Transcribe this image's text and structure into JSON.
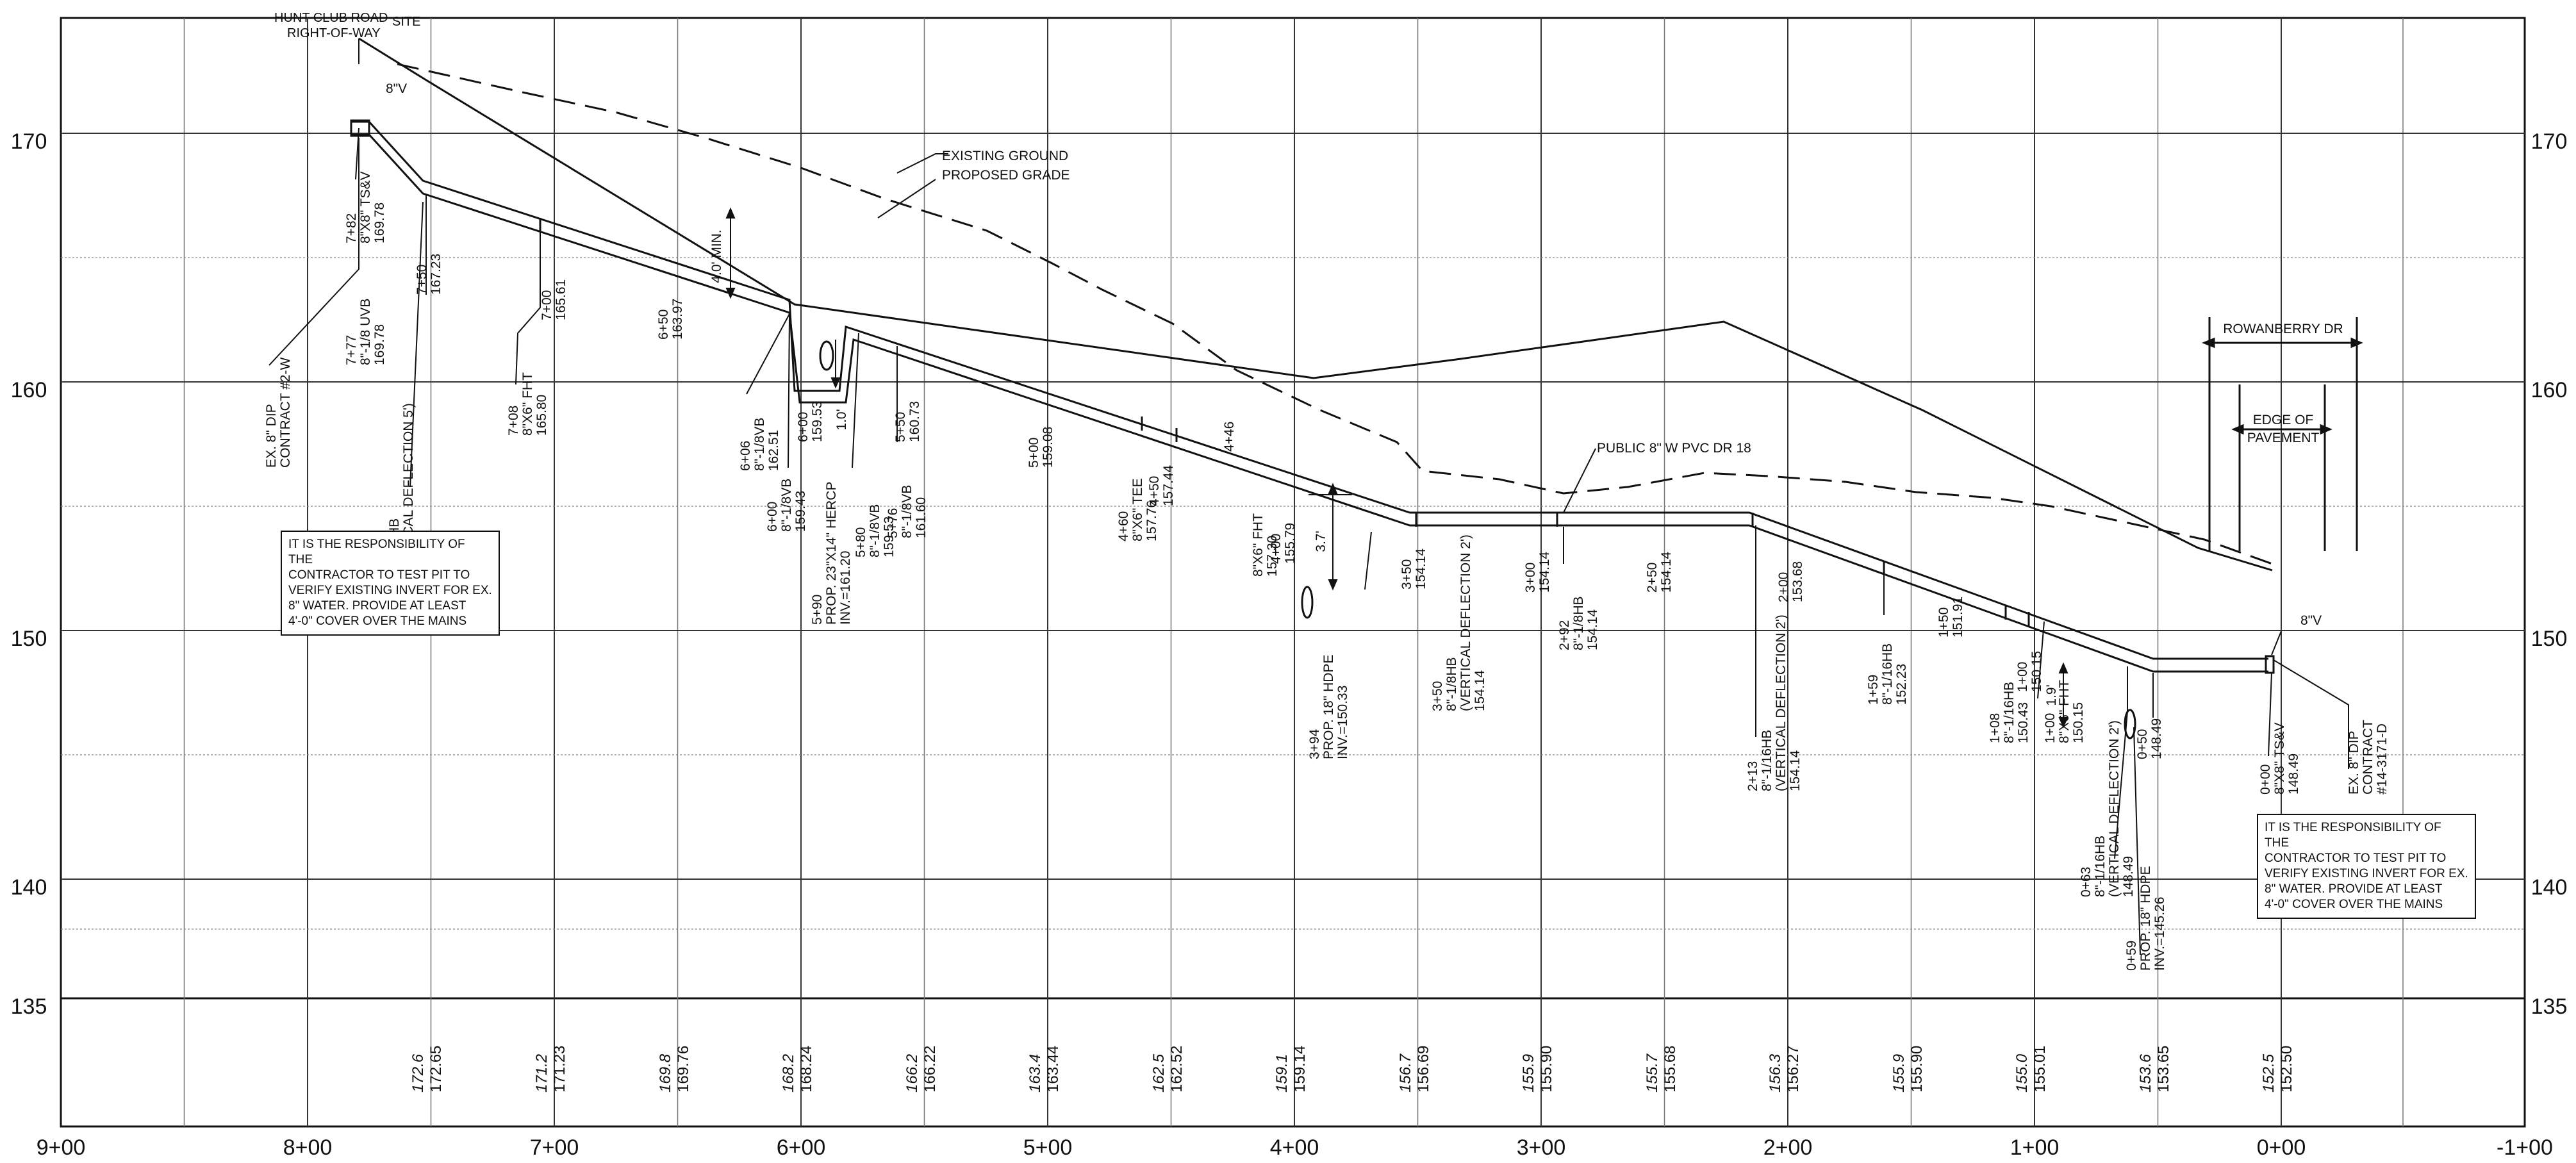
{
  "title_labels": {
    "hunt_club_1": "HUNT CLUB ROAD",
    "hunt_club_2": "RIGHT-OF-WAY",
    "site": "SITE",
    "existing_ground": "EXISTING GROUND",
    "proposed_grade": "PROPOSED GRADE",
    "public_pvc": "PUBLIC 8\" W PVC DR 18",
    "rowanberry": "ROWANBERRY DR",
    "edge_1": "EDGE OF",
    "edge_2": "PAVEMENT",
    "valve_left": "8\"V",
    "valve_right": "8\"V",
    "min_cover": "4.0' MIN.",
    "dim_37": "3.7'",
    "dim_10": "1.0'",
    "dim_19": "1.9'"
  },
  "elevation_axis": {
    "left_labels": [
      "170",
      "160",
      "150",
      "140",
      "135"
    ],
    "right_labels": [
      "170",
      "160",
      "150",
      "140",
      "135"
    ]
  },
  "station_axis": {
    "labels": [
      "9+00",
      "8+00",
      "7+00",
      "6+00",
      "5+00",
      "4+00",
      "3+00",
      "2+00",
      "1+00",
      "0+00",
      "-1+00"
    ]
  },
  "bottom_elevations": [
    {
      "existing": "172.6",
      "proposed": "172.65"
    },
    {
      "existing": "171.2",
      "proposed": "171.23"
    },
    {
      "existing": "169.8",
      "proposed": "169.76"
    },
    {
      "existing": "168.2",
      "proposed": "168.24"
    },
    {
      "existing": "166.2",
      "proposed": "166.22"
    },
    {
      "existing": "163.4",
      "proposed": "163.44"
    },
    {
      "existing": "162.5",
      "proposed": "162.52"
    },
    {
      "existing": "159.1",
      "proposed": "159.14"
    },
    {
      "existing": "156.7",
      "proposed": "156.69"
    },
    {
      "existing": "155.9",
      "proposed": "155.90"
    },
    {
      "existing": "155.7",
      "proposed": "155.68"
    },
    {
      "existing": "156.3",
      "proposed": "156.27"
    },
    {
      "existing": "155.9",
      "proposed": "155.90"
    },
    {
      "existing": "155.0",
      "proposed": "155.01"
    },
    {
      "existing": "153.6",
      "proposed": "153.65"
    },
    {
      "existing": "152.5",
      "proposed": "152.50"
    }
  ],
  "pipe_callouts": [
    {
      "lines": [
        "EX. 8\" DIP",
        "CONTRACT #2-W"
      ]
    },
    {
      "lines": [
        "7+82",
        "8\"X8\" TS&V",
        "169.78"
      ]
    },
    {
      "lines": [
        "7+77",
        "8\"-1/8 UVB",
        "169.78"
      ]
    },
    {
      "lines": [
        "7+56",
        "8\"-1/32HB",
        "(VERTICAL DEFLECTION 5')",
        "167.37"
      ]
    },
    {
      "lines": [
        "7+50",
        "167.23"
      ]
    },
    {
      "lines": [
        "7+08",
        "8\"X6\" FHT",
        "165.80"
      ]
    },
    {
      "lines": [
        "7+00",
        "165.61"
      ]
    },
    {
      "lines": [
        "6+50",
        "163.97"
      ]
    },
    {
      "lines": [
        "6+06",
        "8\"-1/8VB",
        "162.51"
      ]
    },
    {
      "lines": [
        "6+00",
        "8\"-1/8VB",
        "159.43"
      ]
    },
    {
      "lines": [
        "6+00",
        "159.53"
      ]
    },
    {
      "lines": [
        "5+90",
        "PROP. 23\"X14\" HERCP",
        "INV.=161.20"
      ]
    },
    {
      "lines": [
        "5+80",
        "8\"-1/8VB",
        "159.53"
      ]
    },
    {
      "lines": [
        "5+76",
        "8\"-1/8VB",
        "161.60"
      ]
    },
    {
      "lines": [
        "5+50",
        "160.73"
      ]
    },
    {
      "lines": [
        "5+00",
        "159.08"
      ]
    },
    {
      "lines": [
        "4+60",
        "8\"X6\" TEE",
        "157.76"
      ]
    },
    {
      "lines": [
        "4+50",
        "157.44"
      ]
    },
    {
      "lines": [
        "4+46"
      ]
    },
    {
      "lines": [
        "8\"X6\" FHT",
        "157.30"
      ]
    },
    {
      "lines": [
        "4+00",
        "155.79"
      ]
    },
    {
      "lines": [
        "3+94",
        "PROP. 18\" HDPE",
        "INV.=150.33"
      ]
    },
    {
      "lines": [
        "3+50",
        "154.14"
      ]
    },
    {
      "lines": [
        "3+50",
        "8\"-1/8HB",
        "(VERTICAL DEFLECTION 2')",
        "154.14"
      ]
    },
    {
      "lines": [
        "3+00",
        "154.14"
      ]
    },
    {
      "lines": [
        "2+92",
        "8\"-1/8HB",
        "154.14"
      ]
    },
    {
      "lines": [
        "2+50",
        "154.14"
      ]
    },
    {
      "lines": [
        "2+13",
        "8\"-1/16HB",
        "(VERTICAL DEFLECTION 2')",
        "154.14"
      ]
    },
    {
      "lines": [
        "2+00",
        "153.68"
      ]
    },
    {
      "lines": [
        "1+59",
        "8\"-1/16HB",
        "152.23"
      ]
    },
    {
      "lines": [
        "1+50",
        "151.91"
      ]
    },
    {
      "lines": [
        "1+08",
        "8\"-1/16HB",
        "150.43"
      ]
    },
    {
      "lines": [
        "1+00",
        "150.15"
      ]
    },
    {
      "lines": [
        "1+00",
        "8\"X6\" FHT",
        "150.15"
      ]
    },
    {
      "lines": [
        "0+63",
        "8\"-1/16HB",
        "(VERTICAL DEFLECTION 2')",
        "148.49"
      ]
    },
    {
      "lines": [
        "0+59",
        "PROP. 18\" HDPE",
        "INV.=145.26"
      ]
    },
    {
      "lines": [
        "0+50",
        "148.49"
      ]
    },
    {
      "lines": [
        "0+00",
        "8\"X8\" TS&V",
        "148.49"
      ]
    },
    {
      "lines": [
        "EX. 8\" DIP",
        "CONTRACT",
        "#14-3171-D"
      ]
    }
  ],
  "notes": {
    "left": "IT IS THE RESPONSIBILITY OF THE\nCONTRACTOR TO TEST PIT TO\nVERIFY EXISTING INVERT FOR EX.\n8\" WATER. PROVIDE AT LEAST\n4'-0\" COVER OVER THE MAINS",
    "right": "IT IS THE RESPONSIBILITY OF THE\nCONTRACTOR TO TEST PIT TO\nVERIFY EXISTING INVERT FOR EX.\n8\" WATER. PROVIDE AT LEAST\n4'-0\" COVER OVER THE MAINS"
  }
}
